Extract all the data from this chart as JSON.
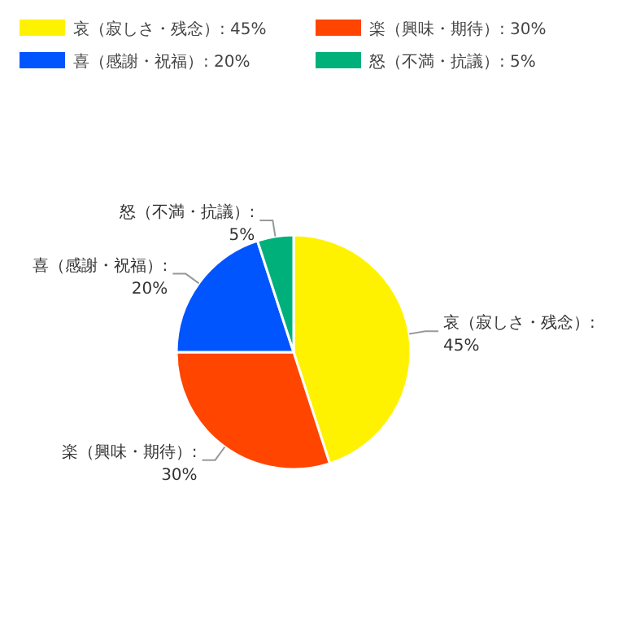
{
  "chart_data": {
    "type": "pie",
    "categories": [
      "哀（寂しさ・残念）: 45%",
      "楽（興味・期待）: 30%",
      "喜（感謝・祝福）: 20%",
      "怒（不満・抗議）: 5%"
    ],
    "values": [
      45,
      30,
      20,
      5
    ],
    "colors": [
      "#fff200",
      "#ff4500",
      "#0055ff",
      "#00b07a"
    ],
    "legend": "top"
  }
}
